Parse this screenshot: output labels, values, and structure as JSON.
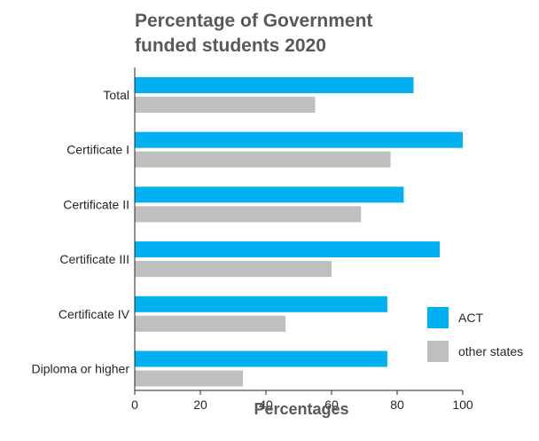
{
  "chart_data": {
    "type": "bar",
    "orientation": "horizontal",
    "title_lines": [
      "Percentage of Government",
      "funded students 2020"
    ],
    "xlabel": "Percentages",
    "ylabel": "",
    "xlim": [
      0,
      100
    ],
    "xticks": [
      "0",
      "20",
      "40",
      "60",
      "80",
      "100"
    ],
    "categories": [
      "Total",
      "Certificate I",
      "Certificate II",
      "Certificate III",
      "Certificate IV",
      "Diploma or higher"
    ],
    "series": [
      {
        "name": "ACT",
        "color": "#00b0f0",
        "values": [
          85,
          100,
          82,
          93,
          77,
          77
        ]
      },
      {
        "name": "other states",
        "color": "#bfbfbf",
        "values": [
          55,
          78,
          69,
          60,
          46,
          33
        ]
      }
    ],
    "grid": false,
    "legend_position": "bottom-right"
  }
}
